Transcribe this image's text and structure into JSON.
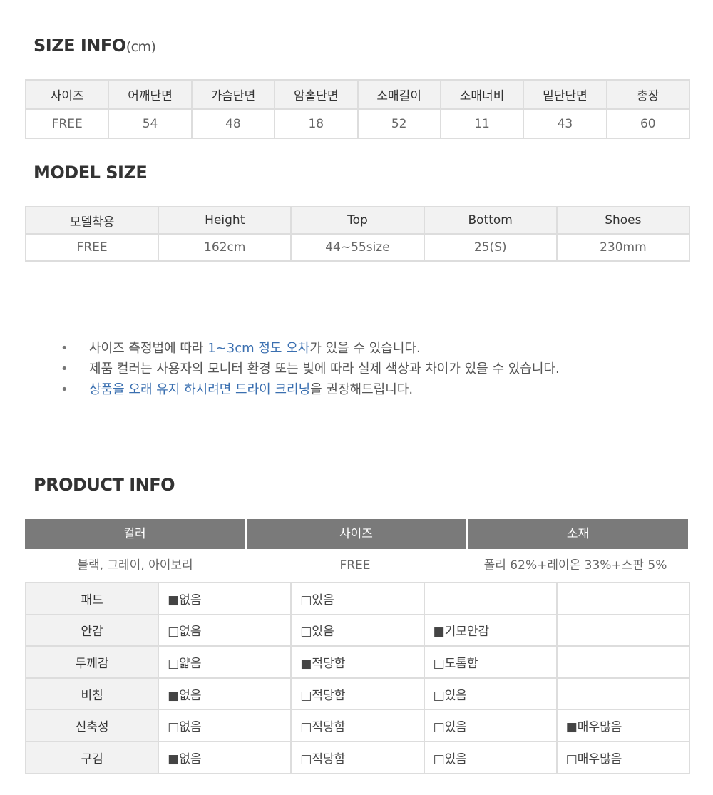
{
  "size_info": {
    "title": "SIZE INFO",
    "unit": "(cm)",
    "headers": [
      "사이즈",
      "어깨단면",
      "가슴단면",
      "암홀단면",
      "소매길이",
      "소매너비",
      "밑단단면",
      "총장"
    ],
    "values": [
      "FREE",
      "54",
      "48",
      "18",
      "52",
      "11",
      "43",
      "60"
    ]
  },
  "model_size": {
    "title": "MODEL SIZE",
    "headers": [
      "모델착용",
      "Height",
      "Top",
      "Bottom",
      "Shoes"
    ],
    "values": [
      "FREE",
      "162cm",
      "44~55size",
      "25(S)",
      "230mm"
    ]
  },
  "notes": [
    {
      "pre": "사이즈 측정법에 따라 ",
      "hl": "1~3cm 정도 오차",
      "post": "가 있을 수 있습니다."
    },
    {
      "pre": "제품 컬러는 사용자의 모니터 환경 또는 빛에 따라 실제 색상과 차이가 있을 수 있습니다.",
      "hl": "",
      "post": ""
    },
    {
      "pre": "",
      "hl": "상품을 오래 유지 하시려면 드라이 크리닝",
      "post": "을 권장해드립니다."
    }
  ],
  "product_info": {
    "title": "PRODUCT INFO",
    "headers": [
      "컬러",
      "사이즈",
      "소재"
    ],
    "values": [
      "블랙, 그레이, 아이보리",
      "FREE",
      "폴리 62%+레이온 33%+스판 5%"
    ],
    "attributes": [
      {
        "label": "패드",
        "options": [
          "■없음",
          "□있음",
          "",
          ""
        ]
      },
      {
        "label": "안감",
        "options": [
          "□없음",
          "□있음",
          "■기모안감",
          ""
        ]
      },
      {
        "label": "두께감",
        "options": [
          "□얇음",
          "■적당함",
          "□도톰함",
          ""
        ]
      },
      {
        "label": "비침",
        "options": [
          "■없음",
          "□적당함",
          "□있음",
          ""
        ]
      },
      {
        "label": "신축성",
        "options": [
          "□없음",
          "□적당함",
          "□있음",
          "■매우많음"
        ]
      },
      {
        "label": "구김",
        "options": [
          "■없음",
          "□적당함",
          "□있음",
          "□매우많음"
        ]
      }
    ]
  },
  "colors": {
    "accent": "#3a6fb0",
    "header_bg": "#7a7a7a"
  }
}
